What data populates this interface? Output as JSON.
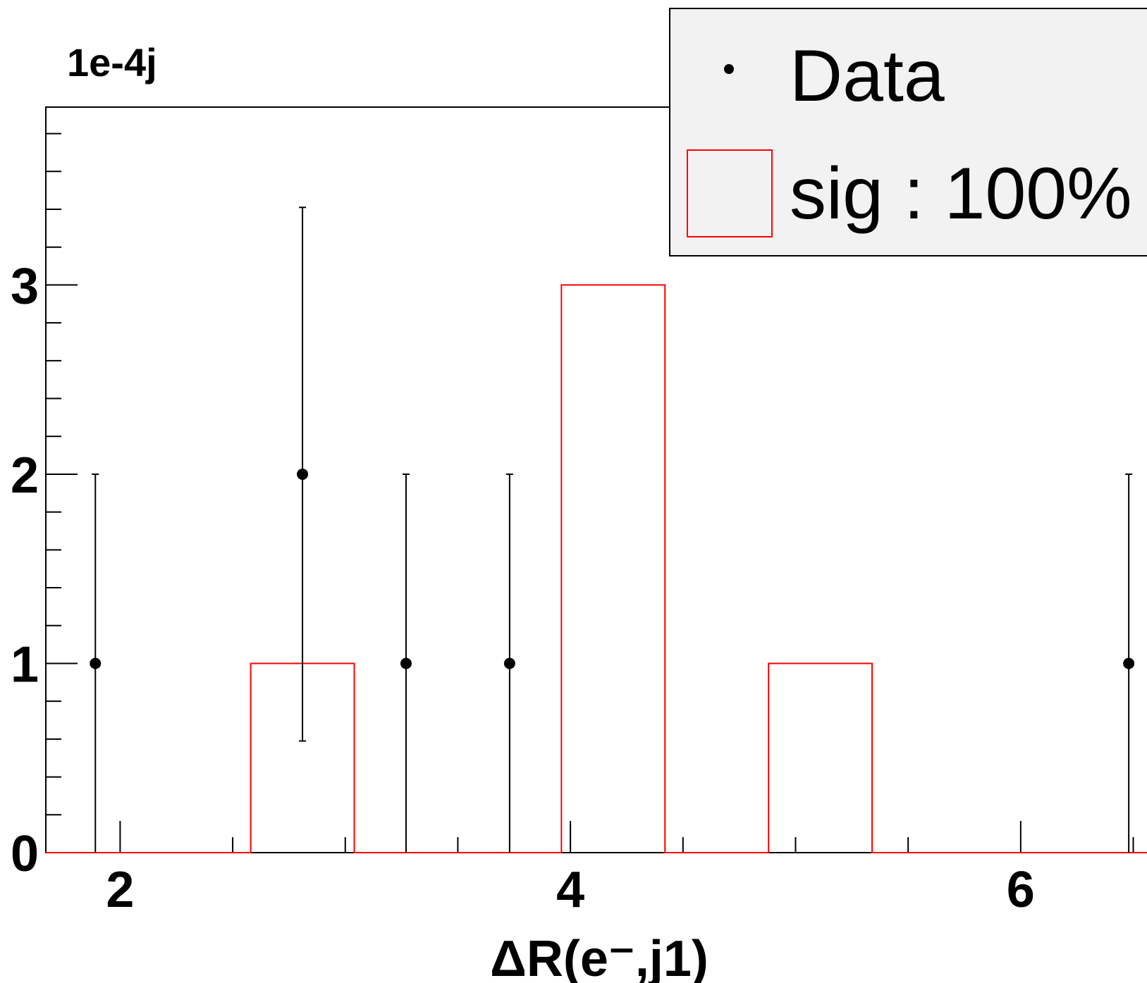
{
  "chart_data": {
    "type": "bar",
    "xlabel": "ΔR(e⁻,j1)",
    "ylabel": "",
    "scale_label": "1e-4j",
    "xlim": [
      1.67,
      6.68
    ],
    "ylim": [
      0,
      3.94
    ],
    "x_ticks": [
      "2",
      "4",
      "6"
    ],
    "y_ticks": [
      "0",
      "1",
      "2",
      "3"
    ],
    "legend": {
      "placement": "top-right",
      "entries": [
        "Data",
        "sig : 100%"
      ]
    },
    "colors": {
      "data": "#000000",
      "signal": "#ff0000",
      "legend_bg": "#f2f2f2"
    },
    "series": [
      {
        "name": "Data",
        "style": "points-with-errors",
        "points": [
          {
            "x": 1.89,
            "y": 1,
            "err_low": 1,
            "err_high": 1
          },
          {
            "x": 2.81,
            "y": 2,
            "err_low": 1.41,
            "err_high": 1.41
          },
          {
            "x": 3.27,
            "y": 1,
            "err_low": 1,
            "err_high": 1
          },
          {
            "x": 3.73,
            "y": 1,
            "err_low": 1,
            "err_high": 1
          },
          {
            "x": 6.48,
            "y": 1,
            "err_low": 1,
            "err_high": 1
          }
        ]
      },
      {
        "name": "sig : 100%",
        "style": "histogram",
        "bin_edges": [
          1.67,
          2.58,
          3.04,
          3.96,
          4.42,
          4.88,
          5.34,
          6.68
        ],
        "values": [
          0,
          1,
          0,
          3,
          0,
          1,
          0
        ]
      }
    ]
  }
}
